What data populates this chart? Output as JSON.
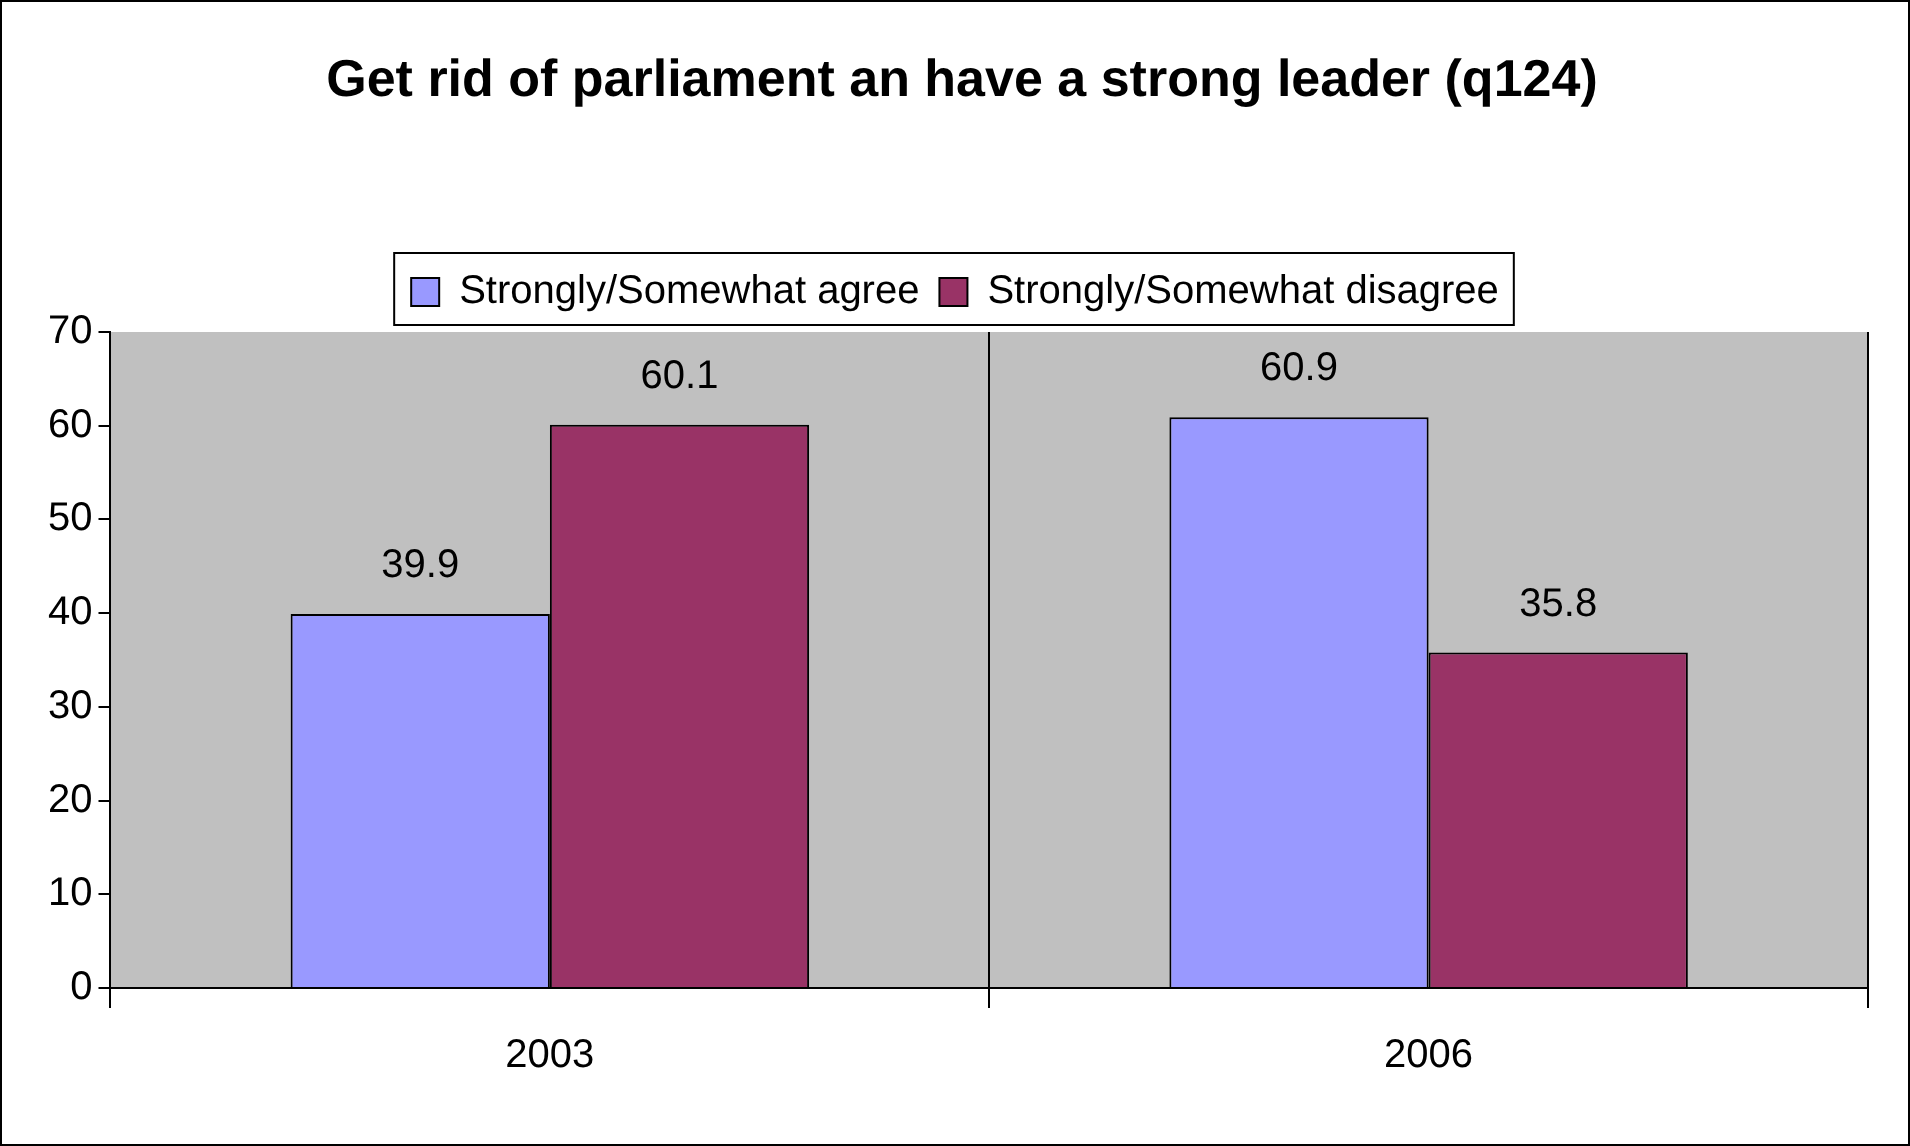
{
  "chart_data": {
    "type": "bar",
    "title": "Get rid of parliament an have a strong leader (q124)",
    "categories": [
      "2003",
      "2006"
    ],
    "series": [
      {
        "name": "Strongly/Somewhat agree",
        "color": "#9999ff",
        "values": [
          39.9,
          60.9
        ]
      },
      {
        "name": "Strongly/Somewhat disagree",
        "color": "#993366",
        "values": [
          60.1,
          35.8
        ]
      }
    ],
    "ylim": [
      0,
      70
    ],
    "yticks": [
      0,
      10,
      20,
      30,
      40,
      50,
      60,
      70
    ],
    "grid": "x",
    "legend": "top",
    "data_labels": true
  }
}
